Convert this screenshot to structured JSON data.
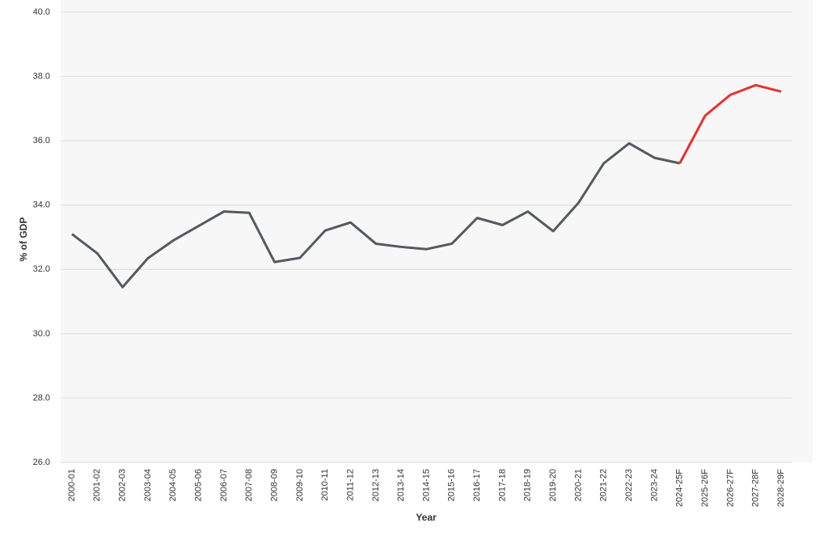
{
  "chart_data": {
    "type": "line",
    "x_label": "Year",
    "y_label": "% of GDP",
    "categories": [
      "2000-01",
      "2001-02",
      "2002-03",
      "2003-04",
      "2004-05",
      "2005-06",
      "2006-07",
      "2007-08",
      "2008-09",
      "2009-10",
      "2010-11",
      "2011-12",
      "2012-13",
      "2013-14",
      "2014-15",
      "2015-16",
      "2016-17",
      "2017-18",
      "2018-19",
      "2019-20",
      "2020-21",
      "2021-22",
      "2022-23",
      "2023-24",
      "2024-25F",
      "2025-26F",
      "2026-27F",
      "2027-28F",
      "2028-29F"
    ],
    "series": [
      {
        "color": "#555a61",
        "values": [
          33.1,
          32.5,
          31.45,
          32.35,
          32.9,
          33.35,
          33.8,
          33.76,
          32.23,
          32.36,
          33.21,
          33.46,
          32.8,
          32.7,
          32.63,
          32.8,
          33.6,
          33.38,
          33.8,
          33.19,
          34.07,
          35.3,
          35.92,
          35.47,
          35.3,
          null,
          null,
          null,
          null
        ]
      },
      {
        "color": "#e8332f",
        "values": [
          null,
          null,
          null,
          null,
          null,
          null,
          null,
          null,
          null,
          null,
          null,
          null,
          null,
          null,
          null,
          null,
          null,
          null,
          null,
          null,
          null,
          null,
          null,
          null,
          35.3,
          36.78,
          37.43,
          37.73,
          37.53
        ]
      }
    ],
    "ylim": [
      26,
      40
    ],
    "yticks": [
      {
        "value": 26,
        "label": "26.0"
      },
      {
        "value": 28,
        "label": "28.0"
      },
      {
        "value": 30,
        "label": "30.0"
      },
      {
        "value": 32,
        "label": "32.0"
      },
      {
        "value": 34,
        "label": "34.0"
      },
      {
        "value": 36,
        "label": "36.0"
      },
      {
        "value": 38,
        "label": "38.0"
      },
      {
        "value": 40,
        "label": "40.0"
      }
    ],
    "grid": true
  }
}
